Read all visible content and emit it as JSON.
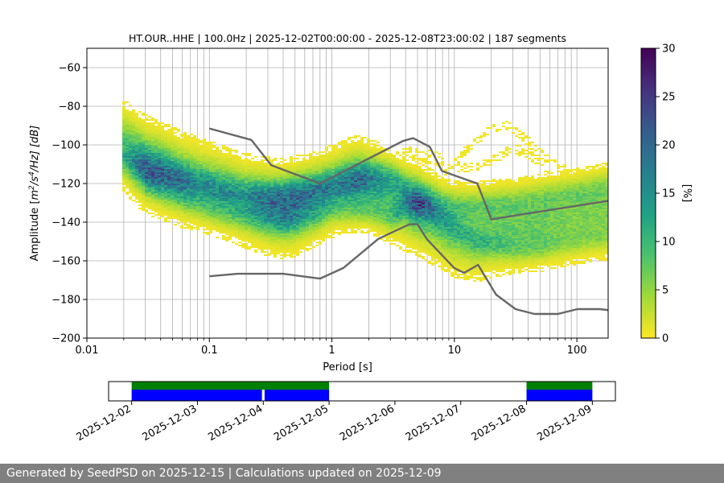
{
  "chart_data": [
    {
      "type": "heatmap",
      "title": "HT.OUR..HHE | 100.0Hz | 2025-12-02T00:00:00 - 2025-12-08T23:00:02 | 187 segments",
      "xlabel": "Period [s]",
      "ylabel_prefix": "Amplitude [",
      "ylabel_m": "m",
      "ylabel_sup1": "2",
      "ylabel_mid": "/s",
      "ylabel_sup2": "4",
      "ylabel_end": "/Hz] [dB]",
      "x_scale": "log",
      "xlim": [
        0.01,
        180
      ],
      "ylim": [
        -200,
        -50
      ],
      "x_ticks": [
        0.01,
        0.1,
        1,
        10,
        100
      ],
      "x_tick_labels": [
        "0.01",
        "0.1",
        "1",
        "10",
        "100"
      ],
      "y_ticks": [
        -200,
        -180,
        -160,
        -140,
        -120,
        -100,
        -80,
        -60
      ],
      "y_tick_labels": [
        "−200",
        "−180",
        "−160",
        "−140",
        "−120",
        "−100",
        "−80",
        "−60"
      ],
      "grid": "vertical minor gridlines on period axis, horizontal major gridlines",
      "colorbar": {
        "label": "[%]",
        "range": [
          0,
          30
        ],
        "ticks": [
          0,
          5,
          10,
          15,
          20,
          25,
          30
        ],
        "tick_labels": [
          "0",
          "5",
          "10",
          "15",
          "20",
          "25",
          "30"
        ],
        "colormap": [
          "#fde725",
          "#a0da39",
          "#4ac16d",
          "#1fa187",
          "#277f8e",
          "#365c8d",
          "#46327e",
          "#440154"
        ]
      },
      "density_ridges": [
        {
          "name": "main",
          "points": [
            [
              0.02,
              -100
            ],
            [
              0.025,
              -106
            ],
            [
              0.03,
              -110
            ],
            [
              0.04,
              -113
            ],
            [
              0.06,
              -118
            ],
            [
              0.08,
              -120
            ],
            [
              0.1,
              -122
            ],
            [
              0.15,
              -126
            ],
            [
              0.2,
              -129
            ],
            [
              0.3,
              -132
            ],
            [
              0.4,
              -133
            ],
            [
              0.5,
              -132
            ],
            [
              0.6,
              -130
            ],
            [
              0.8,
              -127
            ],
            [
              1,
              -124
            ],
            [
              1.3,
              -121
            ],
            [
              1.7,
              -120
            ],
            [
              2.2,
              -122
            ],
            [
              3,
              -127
            ],
            [
              4,
              -131
            ],
            [
              5,
              -133
            ],
            [
              6,
              -136
            ],
            [
              8,
              -141
            ],
            [
              10,
              -145
            ],
            [
              15,
              -148
            ],
            [
              20,
              -146
            ],
            [
              30,
              -144
            ],
            [
              50,
              -142
            ],
            [
              80,
              -140
            ],
            [
              120,
              -138
            ],
            [
              180,
              -136
            ]
          ],
          "peak": [
            8,
            12,
            15,
            14,
            12,
            10,
            10,
            10,
            11,
            15,
            17,
            17,
            15,
            12,
            10,
            11,
            13,
            10,
            9,
            9,
            12,
            11,
            9,
            8,
            7,
            7,
            7,
            7,
            6,
            6,
            6
          ],
          "spread": 9
        },
        {
          "name": "upper",
          "points": [
            [
              0.02,
              -108
            ],
            [
              0.03,
              -114
            ],
            [
              0.05,
              -117
            ],
            [
              0.08,
              -120
            ],
            [
              0.1,
              -122
            ],
            [
              0.2,
              -126
            ],
            [
              0.3,
              -126
            ],
            [
              0.5,
              -124
            ],
            [
              0.8,
              -122
            ],
            [
              1,
              -121
            ],
            [
              1.5,
              -118
            ],
            [
              2,
              -116
            ],
            [
              3,
              -117
            ],
            [
              4,
              -122
            ],
            [
              5,
              -126
            ],
            [
              6,
              -128
            ],
            [
              8,
              -131
            ],
            [
              10,
              -132
            ],
            [
              15,
              -132
            ],
            [
              20,
              -131
            ],
            [
              30,
              -130
            ],
            [
              50,
              -128
            ],
            [
              80,
              -126
            ],
            [
              120,
              -124
            ],
            [
              180,
              -122
            ]
          ],
          "peak": [
            5,
            7,
            7,
            6,
            6,
            5,
            6,
            6,
            7,
            8,
            8,
            8,
            7,
            7,
            7,
            7,
            6,
            6,
            6,
            6,
            5,
            5,
            5,
            5,
            5
          ],
          "spread": 5
        },
        {
          "name": "lower",
          "points": [
            [
              0.03,
              -120
            ],
            [
              0.05,
              -126
            ],
            [
              0.1,
              -134
            ],
            [
              0.2,
              -138
            ],
            [
              0.3,
              -140
            ],
            [
              0.5,
              -140
            ],
            [
              0.8,
              -137
            ],
            [
              1,
              -134
            ],
            [
              2,
              -134
            ],
            [
              3,
              -138
            ],
            [
              4,
              -132
            ],
            [
              5,
              -131
            ],
            [
              6,
              -133
            ],
            [
              8,
              -138
            ],
            [
              10,
              -143
            ],
            [
              15,
              -150
            ],
            [
              20,
              -152
            ],
            [
              30,
              -154
            ],
            [
              50,
              -153
            ],
            [
              80,
              -151
            ],
            [
              120,
              -149
            ],
            [
              180,
              -148
            ]
          ],
          "peak": [
            3,
            3,
            3,
            3,
            3,
            3,
            3,
            3,
            4,
            4,
            6,
            9,
            6,
            4,
            4,
            4,
            4,
            4,
            4,
            3,
            3,
            3
          ],
          "spread": 4
        }
      ],
      "sparse_regions": [
        {
          "points": [
            [
              0.2,
              -112
            ],
            [
              0.5,
              -114
            ],
            [
              1,
              -116
            ],
            [
              2,
              -112
            ],
            [
              3,
              -108
            ],
            [
              4,
              -104
            ],
            [
              5,
              -106
            ],
            [
              6,
              -106
            ],
            [
              8,
              -108
            ]
          ],
          "spread": 3
        },
        {
          "points": [
            [
              10,
              -110
            ],
            [
              12,
              -104
            ],
            [
              15,
              -98
            ],
            [
              20,
              -92
            ],
            [
              25,
              -89
            ],
            [
              30,
              -92
            ],
            [
              40,
              -98
            ],
            [
              50,
              -104
            ],
            [
              60,
              -108
            ],
            [
              80,
              -112
            ]
          ],
          "spread": 2
        },
        {
          "points": [
            [
              8,
              -114
            ],
            [
              10,
              -112
            ],
            [
              15,
              -112
            ],
            [
              20,
              -108
            ],
            [
              30,
              -102
            ],
            [
              40,
              -104
            ],
            [
              50,
              -110
            ],
            [
              60,
              -116
            ],
            [
              100,
              -120
            ]
          ],
          "spread": 2
        }
      ],
      "noise_models": [
        {
          "name": "NHNM",
          "color": "#666666",
          "points": [
            [
              0.1,
              -91.5
            ],
            [
              0.22,
              -97.4
            ],
            [
              0.32,
              -110.5
            ],
            [
              0.8,
              -120
            ],
            [
              3.8,
              -98
            ],
            [
              4.6,
              -96.5
            ],
            [
              6.3,
              -101
            ],
            [
              7.9,
              -113.5
            ],
            [
              15.4,
              -120
            ],
            [
              20,
              -138.5
            ],
            [
              354.8,
              -126
            ]
          ]
        },
        {
          "name": "NLNM",
          "color": "#666666",
          "points": [
            [
              0.1,
              -168
            ],
            [
              0.17,
              -166.7
            ],
            [
              0.4,
              -166.7
            ],
            [
              0.8,
              -169.2
            ],
            [
              1.24,
              -163.7
            ],
            [
              2.4,
              -148.6
            ],
            [
              4.3,
              -141.1
            ],
            [
              5,
              -141.1
            ],
            [
              6,
              -149
            ],
            [
              10,
              -163.8
            ],
            [
              12,
              -166.2
            ],
            [
              15.6,
              -162.1
            ],
            [
              21.9,
              -177.5
            ],
            [
              31.6,
              -185
            ],
            [
              45,
              -187.5
            ],
            [
              70,
              -187.5
            ],
            [
              101,
              -185
            ],
            [
              154,
              -185
            ],
            [
              328,
              -187.5
            ]
          ]
        }
      ]
    },
    {
      "type": "timeline",
      "x_ticks": [
        "2025-12-02",
        "2025-12-03",
        "2025-12-04",
        "2025-12-05",
        "2025-12-06",
        "2025-12-07",
        "2025-12-08",
        "2025-12-09"
      ],
      "xlim_days": [
        -0.35,
        7.35
      ],
      "segments_green": [
        [
          0.0,
          3.0
        ],
        [
          6.0,
          7.0
        ]
      ],
      "segments_blue": [
        [
          0.0,
          1.98
        ],
        [
          2.02,
          3.0
        ],
        [
          6.0,
          7.0
        ]
      ],
      "colors": {
        "green": "#008000",
        "blue": "#0000ff"
      }
    }
  ],
  "footer": {
    "text": "Generated by SeedPSD on 2025-12-15 | Calculations updated on 2025-12-09"
  }
}
